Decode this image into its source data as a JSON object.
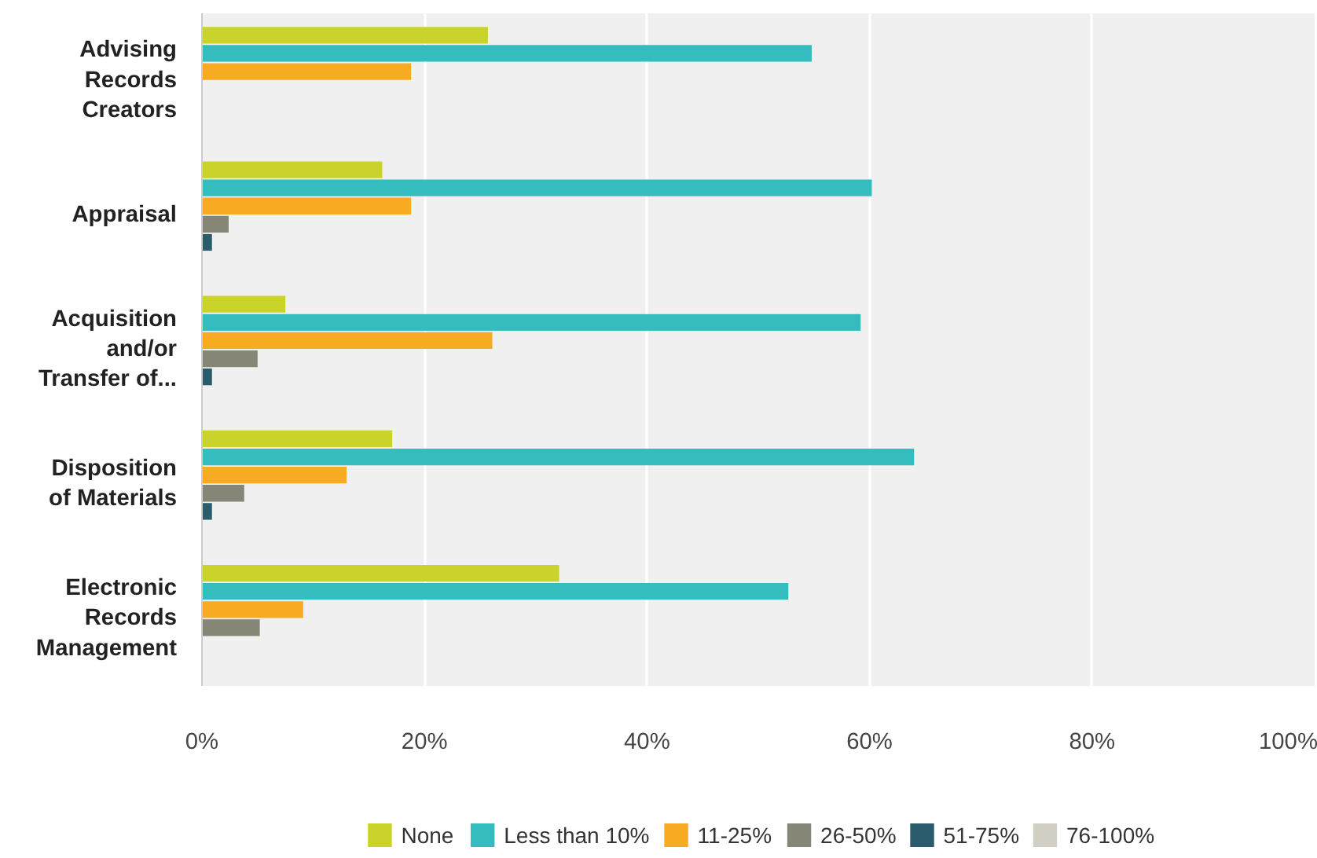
{
  "chart_data": {
    "type": "bar",
    "orientation": "horizontal",
    "categories": [
      "Advising\nRecords\nCreators",
      "Appraisal",
      "Acquisition\nand/or\nTransfer of...",
      "Disposition\nof Materials",
      "Electronic\nRecords\nManagement"
    ],
    "series": [
      {
        "name": "None",
        "color": "#c9d32a",
        "values": [
          25.7,
          16.2,
          7.5,
          17.1,
          32.1
        ]
      },
      {
        "name": "Less than 10%",
        "color": "#35bcbf",
        "values": [
          54.8,
          60.2,
          59.2,
          64.0,
          52.7
        ]
      },
      {
        "name": "11-25%",
        "color": "#f6ab22",
        "values": [
          18.8,
          18.8,
          26.1,
          13.0,
          9.1
        ]
      },
      {
        "name": "26-50%",
        "color": "#868677",
        "values": [
          0,
          2.4,
          5.0,
          3.8,
          5.2
        ]
      },
      {
        "name": "51-75%",
        "color": "#2a5c6b",
        "values": [
          0,
          0.9,
          0.9,
          0.9,
          0
        ]
      },
      {
        "name": "76-100%",
        "color": "#d2d0c4",
        "values": [
          0,
          0,
          0,
          0,
          0
        ]
      }
    ],
    "xlim": [
      0,
      100
    ],
    "xticks": [
      {
        "value": 0,
        "label": "0%"
      },
      {
        "value": 20,
        "label": "20%"
      },
      {
        "value": 40,
        "label": "40%"
      },
      {
        "value": 60,
        "label": "60%"
      },
      {
        "value": 80,
        "label": "80%"
      },
      {
        "value": 100,
        "label": "100%"
      }
    ],
    "grid": "x",
    "legend": "bottom"
  }
}
